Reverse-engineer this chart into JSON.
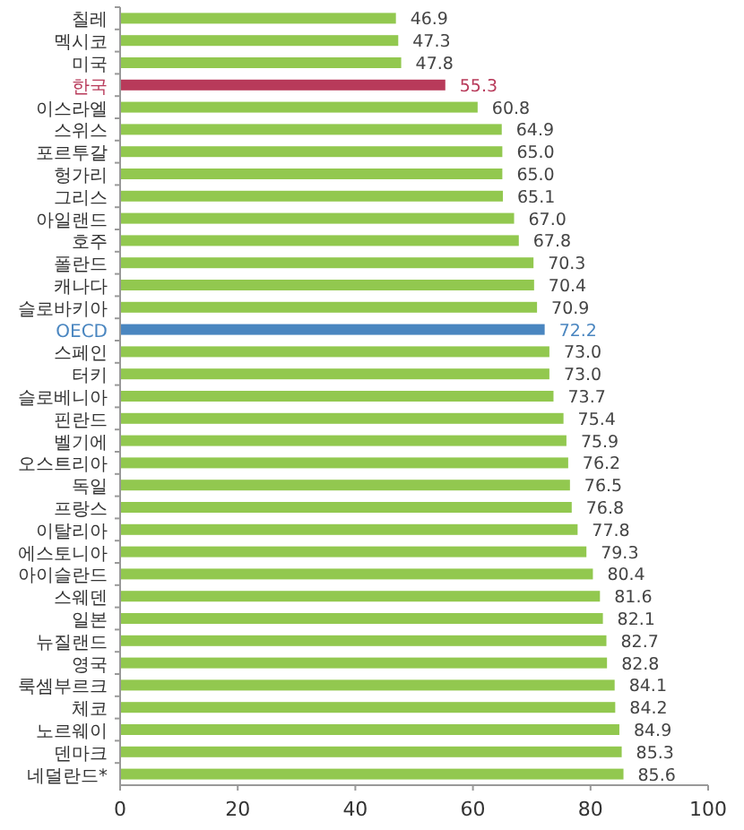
{
  "chart_data": {
    "type": "bar",
    "orientation": "horizontal",
    "categories": [
      "칠레",
      "멕시코",
      "미국",
      "한국",
      "이스라엘",
      "스위스",
      "포르투갈",
      "헝가리",
      "그리스",
      "아일랜드",
      "호주",
      "폴란드",
      "캐나다",
      "슬로바키아",
      "OECD",
      "스페인",
      "터키",
      "슬로베니아",
      "핀란드",
      "벨기에",
      "오스트리아",
      "독일",
      "프랑스",
      "이탈리아",
      "에스토니아",
      "아이슬란드",
      "스웨덴",
      "일본",
      "뉴질랜드",
      "영국",
      "룩셈부르크",
      "체코",
      "노르웨이",
      "덴마크",
      "네덜란드*"
    ],
    "values": [
      46.9,
      47.3,
      47.8,
      55.3,
      60.8,
      64.9,
      65.0,
      65.0,
      65.1,
      67.0,
      67.8,
      70.3,
      70.4,
      70.9,
      72.2,
      73.0,
      73.0,
      73.7,
      75.4,
      75.9,
      76.2,
      76.5,
      76.8,
      77.8,
      79.3,
      80.4,
      81.6,
      82.1,
      82.7,
      82.8,
      84.1,
      84.2,
      84.9,
      85.3,
      85.6
    ],
    "color": "#92c84f",
    "colors": [
      "#92c84f",
      "#92c84f",
      "#92c84f",
      "#b83a5a",
      "#92c84f",
      "#92c84f",
      "#92c84f",
      "#92c84f",
      "#92c84f",
      "#92c84f",
      "#92c84f",
      "#92c84f",
      "#92c84f",
      "#92c84f",
      "#4a86c0",
      "#92c84f",
      "#92c84f",
      "#92c84f",
      "#92c84f",
      "#92c84f",
      "#92c84f",
      "#92c84f",
      "#92c84f",
      "#92c84f",
      "#92c84f",
      "#92c84f",
      "#92c84f",
      "#92c84f",
      "#92c84f",
      "#92c84f",
      "#92c84f",
      "#92c84f",
      "#92c84f",
      "#92c84f",
      "#92c84f"
    ],
    "value_labels": [
      "46.9",
      "47.3",
      "47.8",
      "55.3",
      "60.8",
      "64.9",
      "65.0",
      "65.0",
      "65.1",
      "67.0",
      "67.8",
      "70.3",
      "70.4",
      "70.9",
      "72.2",
      "73.0",
      "73.0",
      "73.7",
      "75.4",
      "75.9",
      "76.2",
      "76.5",
      "76.8",
      "77.8",
      "79.3",
      "80.4",
      "81.6",
      "82.1",
      "82.7",
      "82.8",
      "84.1",
      "84.2",
      "84.9",
      "85.3",
      "85.6"
    ],
    "xlim": [
      0,
      100
    ],
    "xticks": [
      0,
      20,
      40,
      60,
      80,
      100
    ],
    "grid": false
  }
}
